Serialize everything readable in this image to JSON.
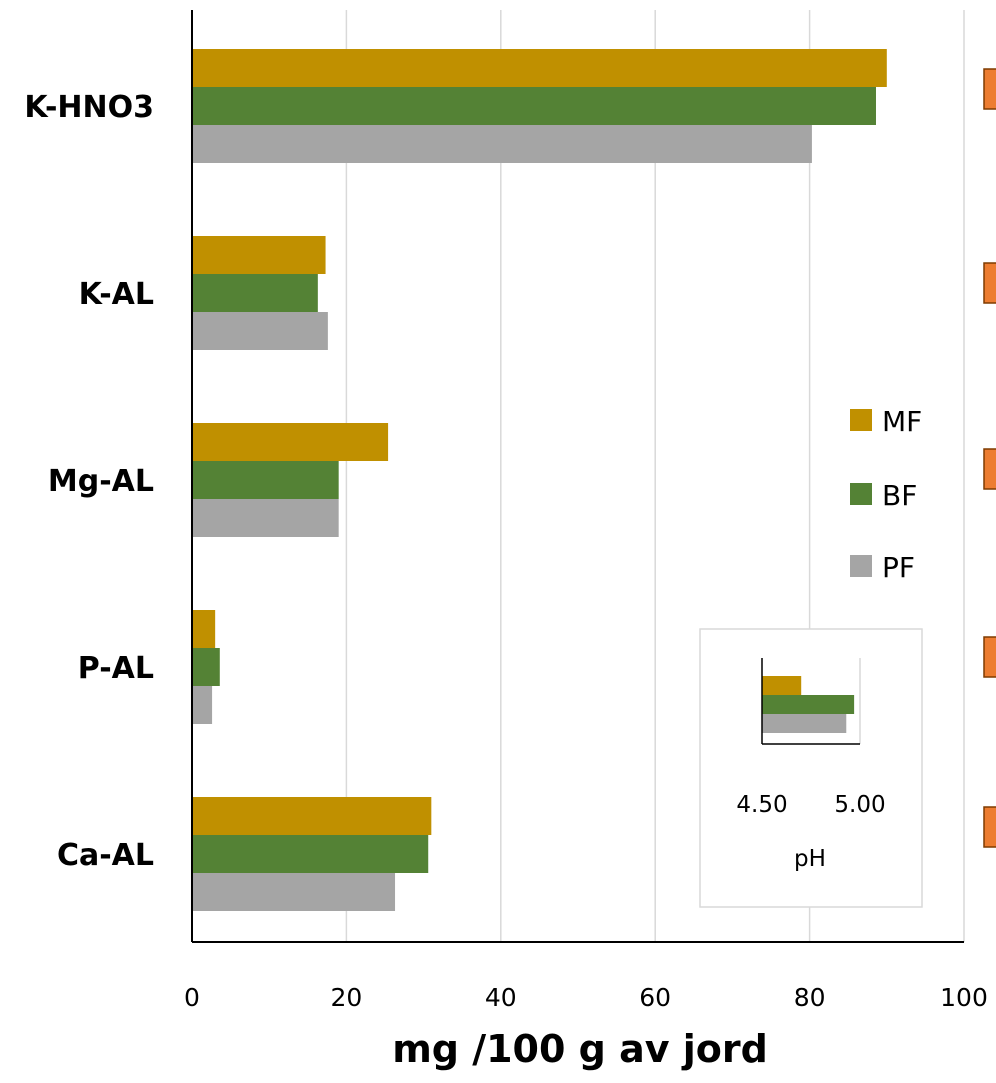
{
  "chart_data": [
    {
      "type": "bar",
      "orientation": "horizontal",
      "categories": [
        "K-HNO3",
        "K-AL",
        "Mg-AL",
        "P-AL",
        "Ca-AL"
      ],
      "series": [
        {
          "name": "MF",
          "color": "#C09000",
          "values": [
            90,
            17.3,
            25.4,
            3,
            31
          ]
        },
        {
          "name": "BF",
          "color": "#548235",
          "values": [
            88.6,
            16.3,
            19,
            3.6,
            30.6
          ]
        },
        {
          "name": "PF",
          "color": "#A5A5A5",
          "values": [
            80.3,
            17.6,
            19,
            2.6,
            26.3
          ]
        }
      ],
      "xlabel": "mg /100  g av jord",
      "xlim": [
        0,
        100
      ],
      "xticks": [
        "0",
        "20",
        "40",
        "60",
        "80",
        "100"
      ],
      "grid": true,
      "legend": "center-right"
    },
    {
      "type": "bar",
      "orientation": "horizontal",
      "categories": [
        "pH"
      ],
      "series": [
        {
          "name": "MF",
          "color": "#C09000",
          "values": [
            4.7
          ]
        },
        {
          "name": "BF",
          "color": "#548235",
          "values": [
            4.97
          ]
        },
        {
          "name": "PF",
          "color": "#A5A5A5",
          "values": [
            4.93
          ]
        }
      ],
      "xlabel": "pH",
      "xlim": [
        4.5,
        5.0
      ],
      "xticks": [
        "4.50",
        "5.00"
      ],
      "legend": "none"
    }
  ],
  "edge_marker_color": "#ED7D31"
}
